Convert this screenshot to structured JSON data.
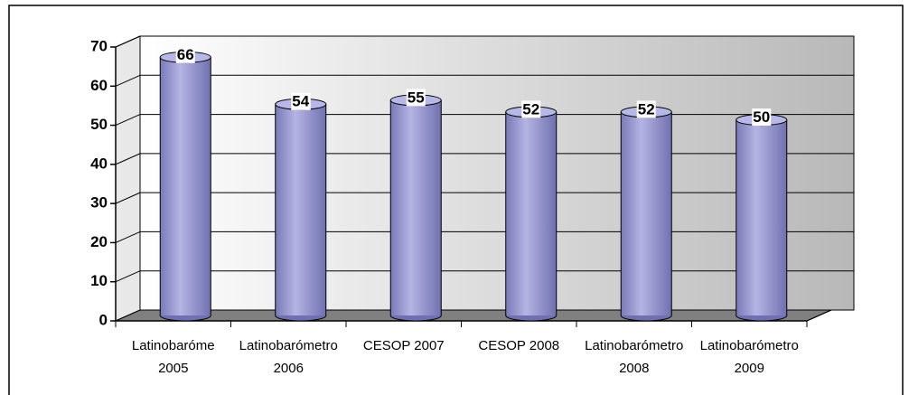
{
  "chart_data": {
    "type": "bar",
    "categories": [
      [
        "Latinobaróme",
        "2005"
      ],
      [
        "Latinobarómetro",
        "2006"
      ],
      [
        "CESOP 2007"
      ],
      [
        "CESOP 2008"
      ],
      [
        "Latinobarómetro",
        "2008"
      ],
      [
        "Latinobarómetro",
        "2009"
      ]
    ],
    "values": [
      66,
      54,
      55,
      52,
      52,
      50
    ],
    "color": "#9090d0",
    "ylim": [
      0,
      70
    ],
    "yticks": [
      0,
      10,
      20,
      30,
      40,
      50,
      60,
      70
    ],
    "grid": true
  }
}
